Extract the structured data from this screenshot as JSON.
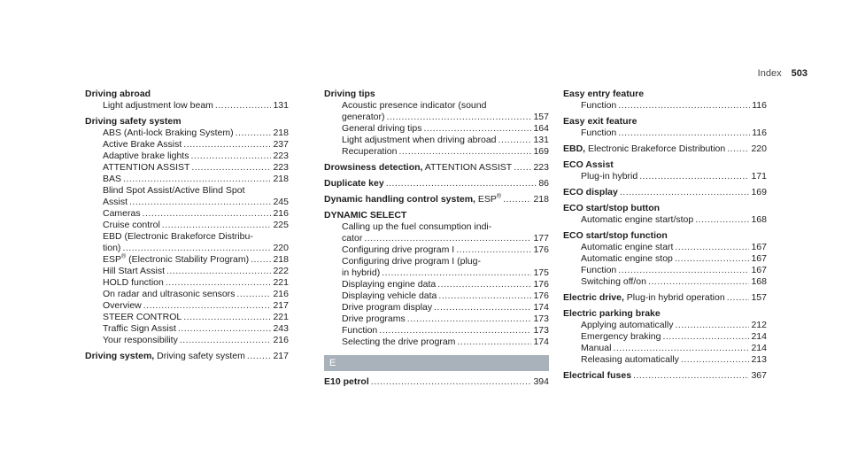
{
  "header": {
    "label": "Index",
    "page": "503"
  },
  "col1": {
    "driving_abroad": {
      "title": "Driving abroad",
      "sub1_t": "Light adjustment low beam",
      "sub1_p": "131"
    },
    "driving_safety": {
      "title": "Driving safety system",
      "items": [
        {
          "t": "ABS (Anti-lock Braking System)",
          "p": "218"
        },
        {
          "t": "Active Brake Assist",
          "p": "237"
        },
        {
          "t": "Adaptive brake lights",
          "p": "223"
        },
        {
          "t": "ATTENTION ASSIST",
          "p": "223"
        },
        {
          "t": "BAS",
          "p": "218"
        }
      ],
      "bsa_line1": "Blind Spot Assist/Active Blind Spot",
      "bsa_line2": "Assist",
      "bsa_p": "245",
      "cameras": "Cameras",
      "cameras_p": "216",
      "cruise": "Cruise control",
      "cruise_p": "225",
      "ebd_line1": "EBD (Electronic Brakeforce Distribu-",
      "ebd_line2": "tion)",
      "ebd_p": "220",
      "esp_a": "ESP",
      "esp_reg": "®",
      "esp_b": " (Electronic Stability Program)",
      "esp_p": "218",
      "items2": [
        {
          "t": "Hill Start Assist",
          "p": "222"
        },
        {
          "t": "HOLD function",
          "p": "221"
        },
        {
          "t": "On radar and ultrasonic sensors",
          "p": "216"
        },
        {
          "t": "Overview",
          "p": "217"
        },
        {
          "t": "STEER CONTROL",
          "p": "221"
        },
        {
          "t": "Traffic Sign Assist",
          "p": "243"
        },
        {
          "t": "Your responsibility",
          "p": "216"
        }
      ]
    },
    "driving_system": {
      "title": "Driving system,",
      "rest": " Driving safety system",
      "p": "217"
    }
  },
  "col2": {
    "driving_tips": {
      "title": "Driving tips",
      "aps_line1": "Acoustic presence indicator (sound",
      "aps_line2": "generator)",
      "aps_p": "157",
      "items": [
        {
          "t": "General driving tips",
          "p": "164"
        },
        {
          "t": "Light adjustment when driving abroad",
          "p": "131"
        },
        {
          "t": "Recuperation",
          "p": "169"
        }
      ]
    },
    "drowsiness": {
      "title": "Drowsiness detection,",
      "rest": " ATTENTION ASSIST",
      "p": "223"
    },
    "duplicate": {
      "title": "Duplicate key",
      "p": "86"
    },
    "dynamic": {
      "title": "Dynamic handling control system,",
      "rest": " ESP",
      "reg": "®",
      "p": "218"
    },
    "dynamic_select": {
      "title": "DYNAMIC SELECT",
      "calling_line1": "Calling up the fuel consumption indi-",
      "calling_line2": "cator",
      "calling_p": "177",
      "config1": "Configuring drive program I",
      "config1_p": "176",
      "config2_line1": "Configuring drive program I (plug-",
      "config2_line2": "in hybrid)",
      "config2_p": "175",
      "items": [
        {
          "t": "Displaying engine data",
          "p": "176"
        },
        {
          "t": "Displaying vehicle data",
          "p": "176"
        },
        {
          "t": "Drive program display",
          "p": "174"
        },
        {
          "t": "Drive programs",
          "p": "173"
        },
        {
          "t": "Function",
          "p": "173"
        },
        {
          "t": "Selecting the drive program",
          "p": "174"
        }
      ]
    },
    "letter": "E",
    "e10": {
      "title": "E10 petrol",
      "p": "394"
    }
  },
  "col3": {
    "easy_entry": {
      "title": "Easy entry feature",
      "sub": "Function",
      "p": "116"
    },
    "easy_exit": {
      "title": "Easy exit feature",
      "sub": "Function",
      "p": "116"
    },
    "ebd": {
      "title": "EBD,",
      "rest": " Electronic Brakeforce Distribution",
      "p": "220"
    },
    "eco_assist": {
      "title": "ECO Assist",
      "sub": "Plug-in hybrid",
      "p": "171"
    },
    "eco_display": {
      "title": "ECO display",
      "p": "169"
    },
    "eco_button": {
      "title": "ECO start/stop button",
      "sub": "Automatic engine start/stop",
      "p": "168"
    },
    "eco_function": {
      "title": "ECO start/stop function",
      "items": [
        {
          "t": "Automatic engine start",
          "p": "167"
        },
        {
          "t": "Automatic engine stop",
          "p": "167"
        },
        {
          "t": "Function",
          "p": "167"
        },
        {
          "t": "Switching off/on",
          "p": "168"
        }
      ]
    },
    "electric_drive": {
      "title": "Electric drive,",
      "rest": " Plug-in hybrid operation",
      "p": "157"
    },
    "parking_brake": {
      "title": "Electric parking brake",
      "items": [
        {
          "t": "Applying automatically",
          "p": "212"
        },
        {
          "t": "Emergency braking",
          "p": "214"
        },
        {
          "t": "Manual",
          "p": "214"
        },
        {
          "t": "Releasing automatically",
          "p": "213"
        }
      ]
    },
    "fuses": {
      "title": "Electrical fuses",
      "p": "367"
    }
  }
}
